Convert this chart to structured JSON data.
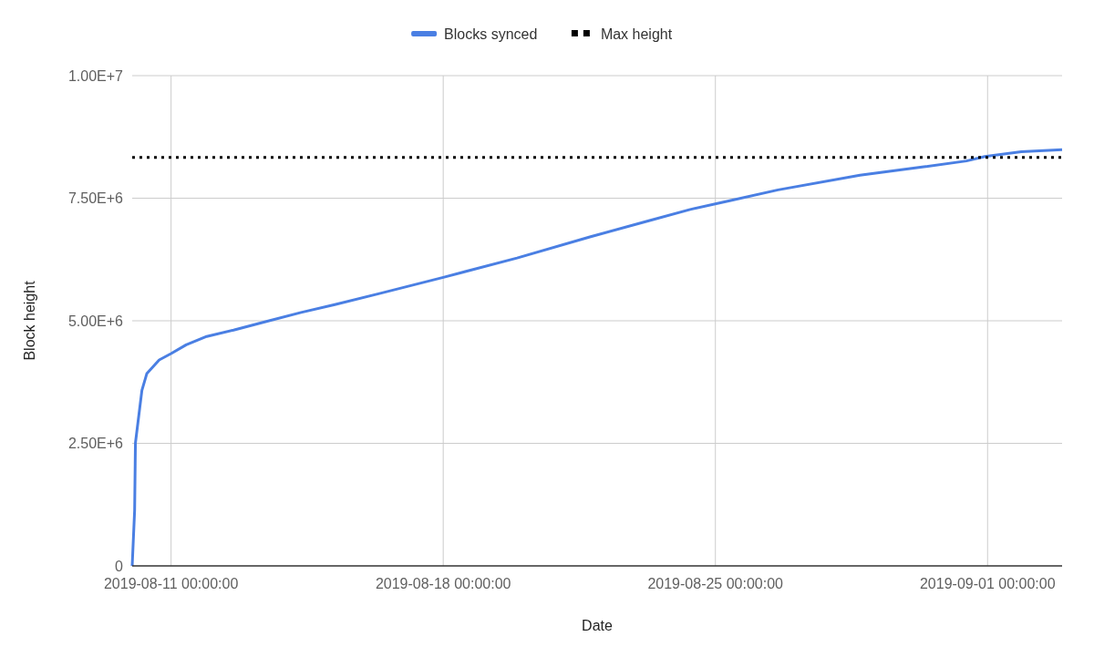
{
  "chart_data": {
    "type": "line",
    "xlabel": "Date",
    "ylabel": "Block height",
    "xlim": [
      "2019-08-10T00:00",
      "2019-09-02T22:00"
    ],
    "xticks": [
      {
        "value": "2019-08-11",
        "label": "2019-08-11 00:00:00"
      },
      {
        "value": "2019-08-18",
        "label": "2019-08-18 00:00:00"
      },
      {
        "value": "2019-08-25",
        "label": "2019-08-25 00:00:00"
      },
      {
        "value": "2019-09-01",
        "label": "2019-09-01 00:00:00"
      }
    ],
    "ylim": [
      0,
      10000000
    ],
    "yticks": [
      0,
      {
        "value": 2500000,
        "label": "2.50E+6"
      },
      {
        "value": 5000000,
        "label": "5.00E+6"
      },
      {
        "value": 7500000,
        "label": "7.50E+6"
      },
      {
        "value": 10000000,
        "label": "1.00E+7"
      }
    ],
    "grid": true,
    "legend": "top",
    "marker": "none",
    "series": [
      {
        "name": "Blocks synced",
        "color": "#4a7fe3",
        "line_style": "solid",
        "x": [
          "2019-08-10T00:00",
          "2019-08-10T01:30",
          "2019-08-10T02:00",
          "2019-08-10T06:00",
          "2019-08-10T09:00",
          "2019-08-10T16:40",
          "2019-08-11T00:00",
          "2019-08-11T09:20",
          "2019-08-11T22:00",
          "2019-08-12T14:35",
          "2019-08-13T11:25",
          "2019-08-14T08:15",
          "2019-08-15T05:05",
          "2019-08-16T09:10",
          "2019-08-18T00:35",
          "2019-08-19T21:35",
          "2019-08-21T18:30",
          "2019-08-23T07:55",
          "2019-08-24T08:25",
          "2019-08-25T08:50",
          "2019-08-26T14:40",
          "2019-08-28T17:15",
          "2019-08-30T08:40",
          "2019-08-31T11:00",
          "2019-08-31T22:20",
          "2019-09-01T20:50",
          "2019-09-02T22:00"
        ],
        "values": [
          0,
          1130000,
          2510000,
          3580000,
          3920000,
          4200000,
          4330000,
          4510000,
          4680000,
          4810000,
          4990000,
          5170000,
          5330000,
          5560000,
          5890000,
          6280000,
          6710000,
          7050000,
          7270000,
          7450000,
          7670000,
          7970000,
          8140000,
          8260000,
          8350000,
          8450000,
          8490000
        ]
      },
      {
        "name": "Max height",
        "color": "#000000",
        "line_style": "dotted",
        "x": [
          "2019-08-10T00:00",
          "2019-09-02T22:00"
        ],
        "values": [
          8330000,
          8330000
        ]
      }
    ]
  }
}
